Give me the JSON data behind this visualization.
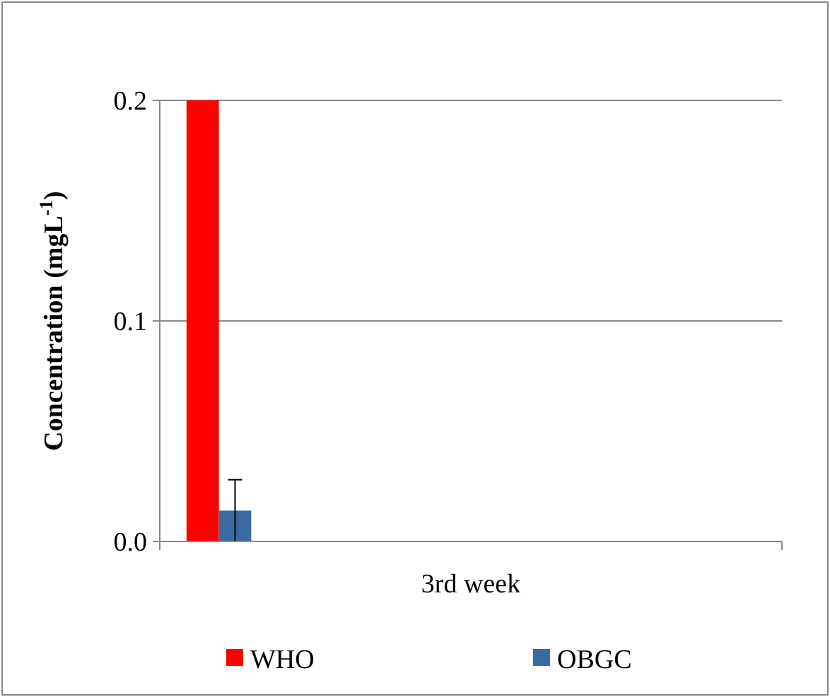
{
  "chart_data": {
    "type": "bar",
    "ylabel": "Concentration (mgL$^{-1}$)",
    "categories": [
      "3rd week"
    ],
    "series": [
      {
        "name": "WHO",
        "color": "#ff0000",
        "values": [
          0.2
        ]
      },
      {
        "name": "OBGC",
        "color": "#3c6aa0",
        "values": [
          0.014
        ],
        "errors": [
          0.014
        ]
      }
    ],
    "ylim": [
      0,
      0.2
    ],
    "yticks": [
      {
        "value": 0,
        "label": "0.0"
      },
      {
        "value": 0.1,
        "label": "0.1"
      },
      {
        "value": 0.2,
        "label": "0.2"
      }
    ],
    "grid": "y",
    "legend": "bottom"
  }
}
